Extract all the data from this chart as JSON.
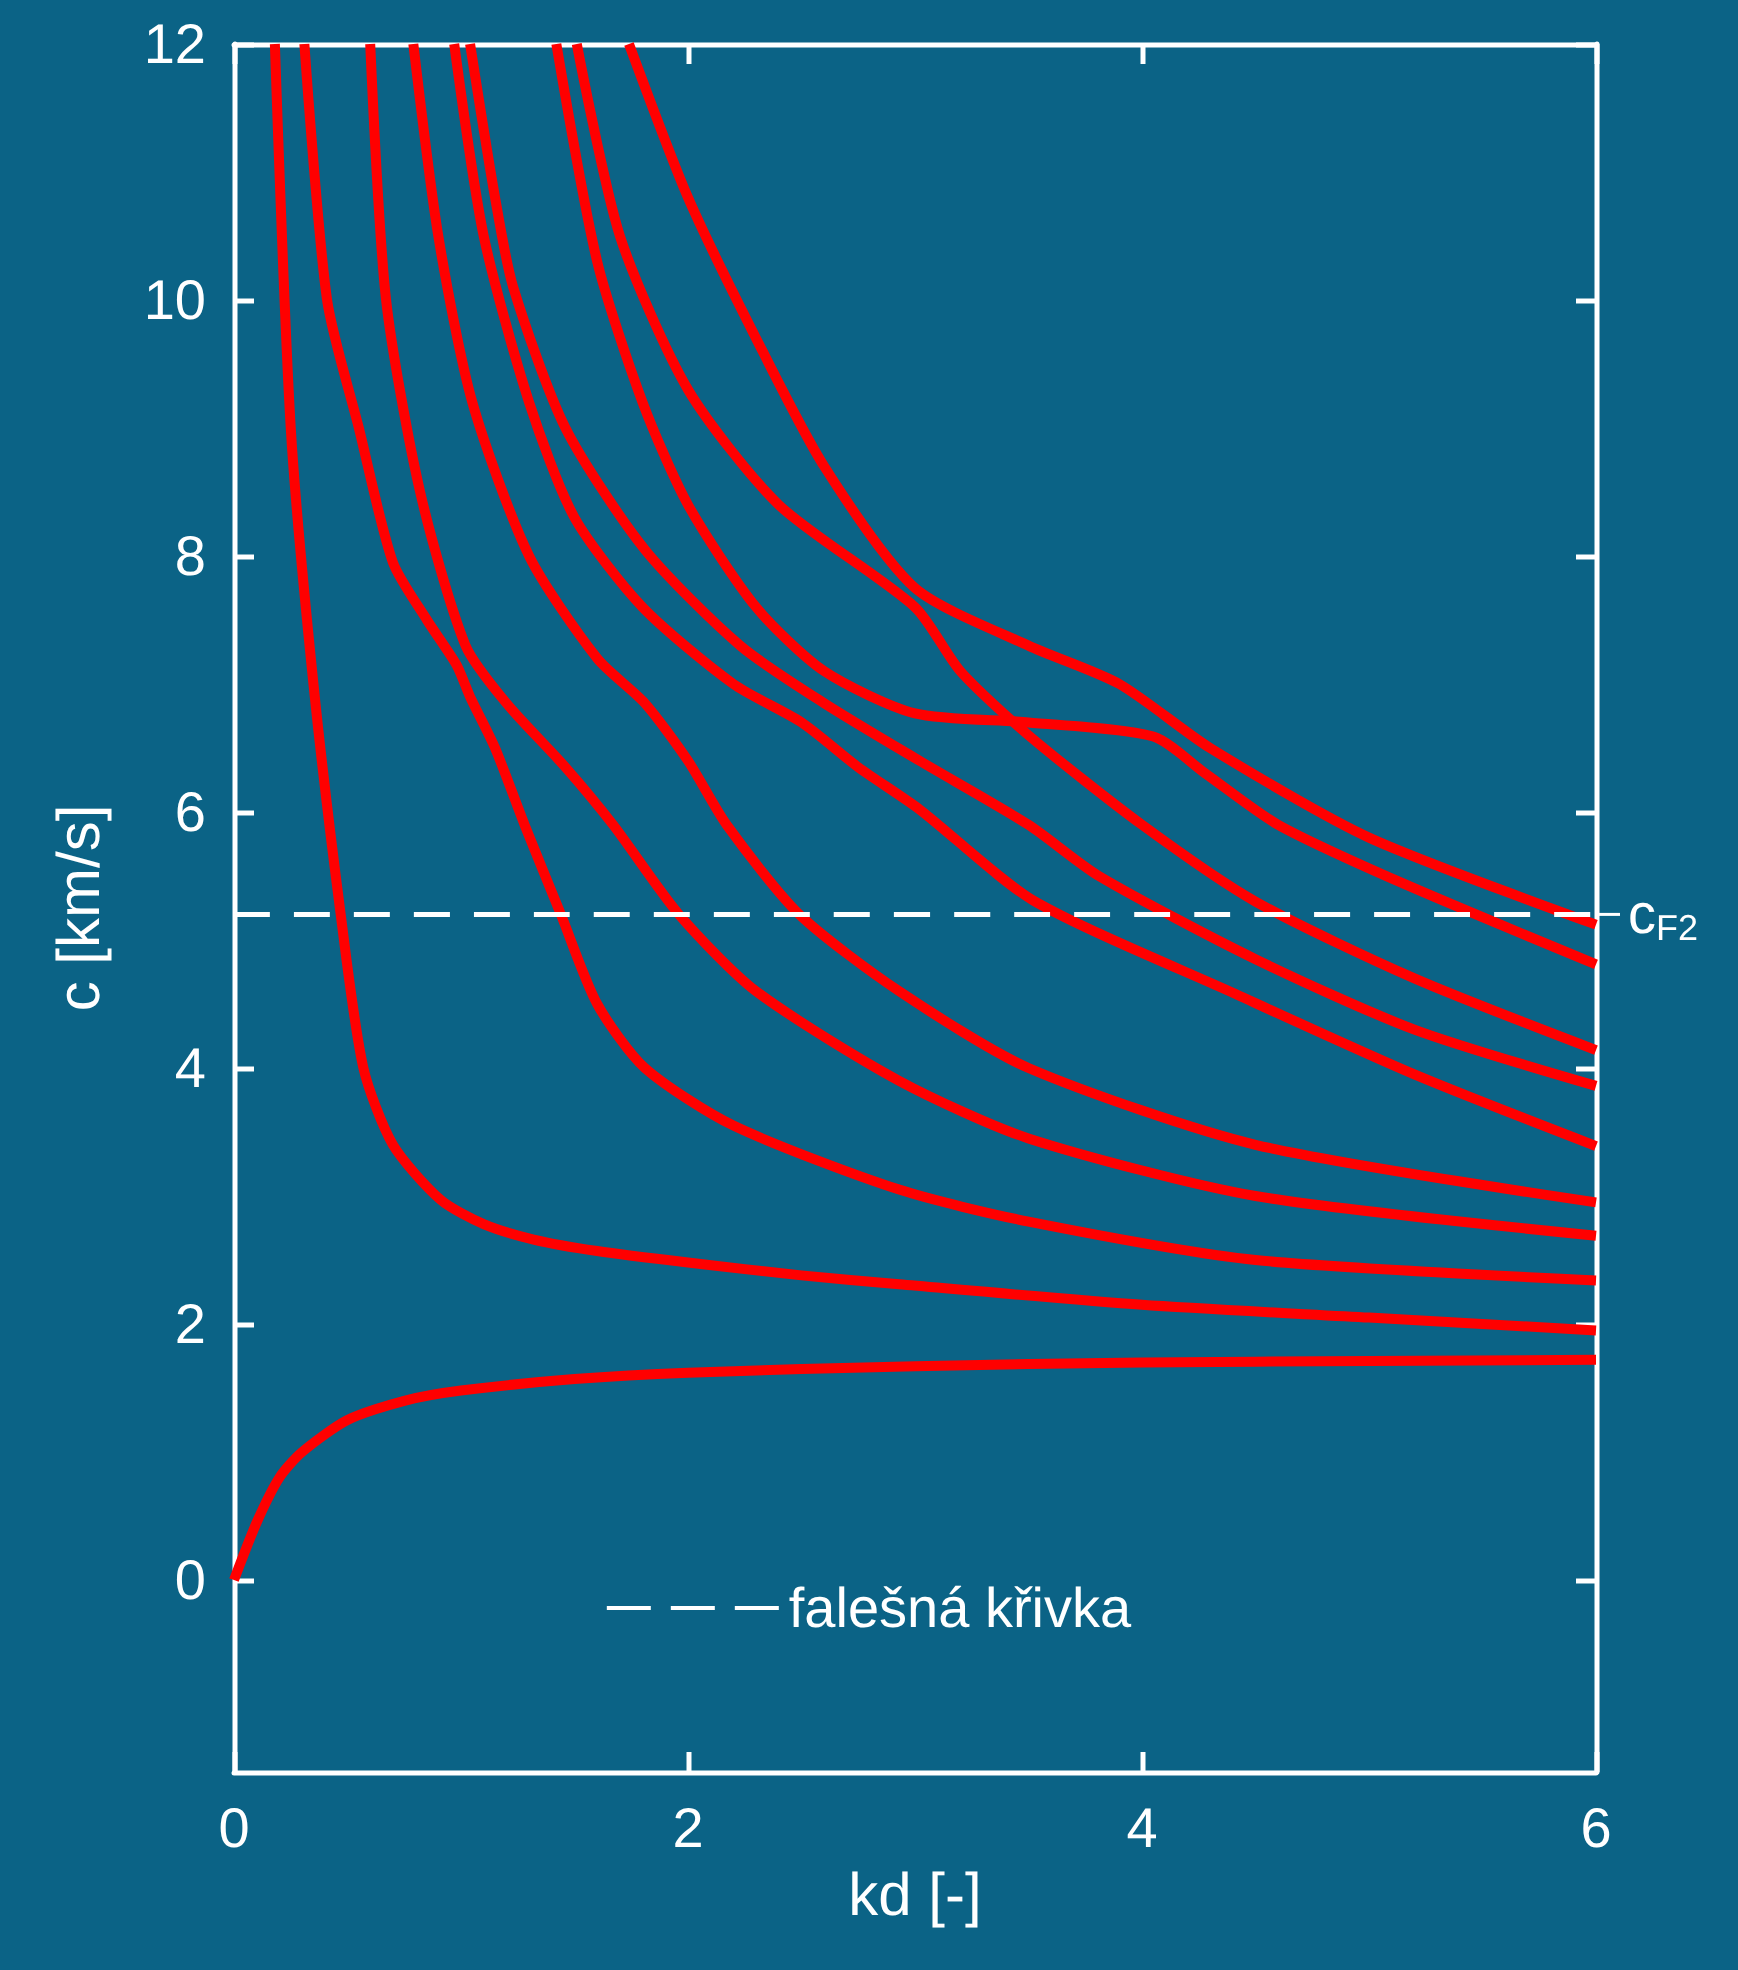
{
  "chart_data": {
    "type": "line",
    "xlabel": "kd [-]",
    "ylabel": "c [km/s]",
    "xlim": [
      0,
      6
    ],
    "ylim": [
      -1.5,
      12
    ],
    "xticks": [
      0,
      2,
      4,
      6
    ],
    "yticks": [
      0,
      2,
      4,
      6,
      8,
      10,
      12
    ],
    "grid": false,
    "legend": "bottom",
    "marker": "none",
    "line_style": "solid",
    "annotations": [
      {
        "text": "c$_{F2}$",
        "x": 6,
        "y": 5.2
      }
    ],
    "series": [
      {
        "color": "#ff0000",
        "x": [
          0,
          0.1,
          0.2,
          0.3,
          0.5,
          0.75,
          1,
          1.5,
          2,
          3,
          4,
          5,
          6
        ],
        "values": [
          0,
          0.45,
          0.8,
          1.0,
          1.25,
          1.4,
          1.48,
          1.57,
          1.62,
          1.67,
          1.7,
          1.71,
          1.72
        ]
      },
      {
        "color": "#ff0000",
        "x": [
          0.18,
          0.25,
          0.35,
          0.47,
          0.57,
          0.7,
          0.91,
          1.1,
          1.32,
          1.6,
          2,
          2.5,
          2.93,
          4,
          5,
          6
        ],
        "values": [
          12,
          9,
          7,
          5.2,
          4,
          3.4,
          2.97,
          2.78,
          2.66,
          2.57,
          2.48,
          2.38,
          2.31,
          2.15,
          2.05,
          1.95
        ]
      },
      {
        "color": "#ff0000",
        "x": [
          0.31,
          0.41,
          0.55,
          0.7,
          0.85,
          0.98,
          1.04,
          1.15,
          1.28,
          1.44,
          1.6,
          1.81,
          2.2,
          2.93,
          3.5,
          4.5,
          6
        ],
        "values": [
          12,
          10,
          9,
          7.95,
          7.5,
          7.15,
          6.9,
          6.5,
          5.9,
          5.2,
          4.5,
          4,
          3.55,
          3.05,
          2.8,
          2.5,
          2.34
        ]
      },
      {
        "color": "#ff0000",
        "x": [
          0.6,
          0.67,
          0.82,
          1.02,
          1.2,
          1.46,
          1.67,
          1.96,
          2.3,
          2.93,
          3.5,
          4.5,
          6
        ],
        "values": [
          12,
          10,
          8.5,
          7.3,
          6.85,
          6.35,
          5.9,
          5.2,
          4.6,
          3.9,
          3.45,
          3,
          2.69
        ]
      },
      {
        "color": "#ff0000",
        "x": [
          0.79,
          0.9,
          1.05,
          1.3,
          1.6,
          1.81,
          2,
          2.17,
          2.49,
          2.93,
          3.5,
          4.5,
          6
        ],
        "values": [
          12,
          10.5,
          9.2,
          8,
          7.2,
          6.85,
          6.4,
          5.9,
          5.2,
          4.6,
          4,
          3.4,
          2.95
        ]
      },
      {
        "color": "#ff0000",
        "x": [
          0.97,
          1.1,
          1.3,
          1.5,
          1.8,
          2.2,
          2.5,
          2.75,
          3.02,
          3.52,
          4.41,
          5.2,
          6
        ],
        "values": [
          12,
          10.5,
          9.2,
          8.3,
          7.6,
          7,
          6.7,
          6.35,
          6.02,
          5.31,
          4.58,
          3.95,
          3.39
        ]
      },
      {
        "color": "#ff0000",
        "x": [
          1.04,
          1.15,
          1.23,
          1.46,
          1.81,
          2.23,
          2.6,
          3.02,
          3.5,
          3.81,
          4.5,
          5.2,
          6
        ],
        "values": [
          12,
          10.8,
          10.1,
          9,
          8.05,
          7.3,
          6.85,
          6.4,
          5.9,
          5.5,
          4.85,
          4.3,
          3.86
        ]
      },
      {
        "color": "#ff0000",
        "x": [
          1.42,
          1.6,
          1.8,
          2,
          2.3,
          2.6,
          3,
          3.5,
          4.05,
          4.28,
          4.6,
          5.14,
          6
        ],
        "values": [
          12,
          10.3,
          9.2,
          8.4,
          7.6,
          7.1,
          6.77,
          6.7,
          6.59,
          6.3,
          5.9,
          5.45,
          4.81
        ]
      },
      {
        "color": "#ff0000",
        "x": [
          1.51,
          1.7,
          2,
          2.4,
          3,
          3.2,
          3.5,
          4,
          4.5,
          5.2,
          6
        ],
        "values": [
          12,
          10.5,
          9.3,
          8.4,
          7.6,
          7.1,
          6.6,
          5.9,
          5.3,
          4.7,
          4.14
        ]
      },
      {
        "color": "#ff0000",
        "x": [
          1.74,
          2,
          2.3,
          2.6,
          3,
          3.5,
          3.9,
          4.3,
          5,
          6
        ],
        "values": [
          12,
          10.8,
          9.7,
          8.7,
          7.75,
          7.3,
          7,
          6.5,
          5.8,
          5.12
        ]
      },
      {
        "name": "falešná křivka",
        "color": "#ffffff",
        "line_style": "dashed",
        "x": [
          0,
          6
        ],
        "values": [
          5.2,
          5.2
        ]
      }
    ]
  }
}
